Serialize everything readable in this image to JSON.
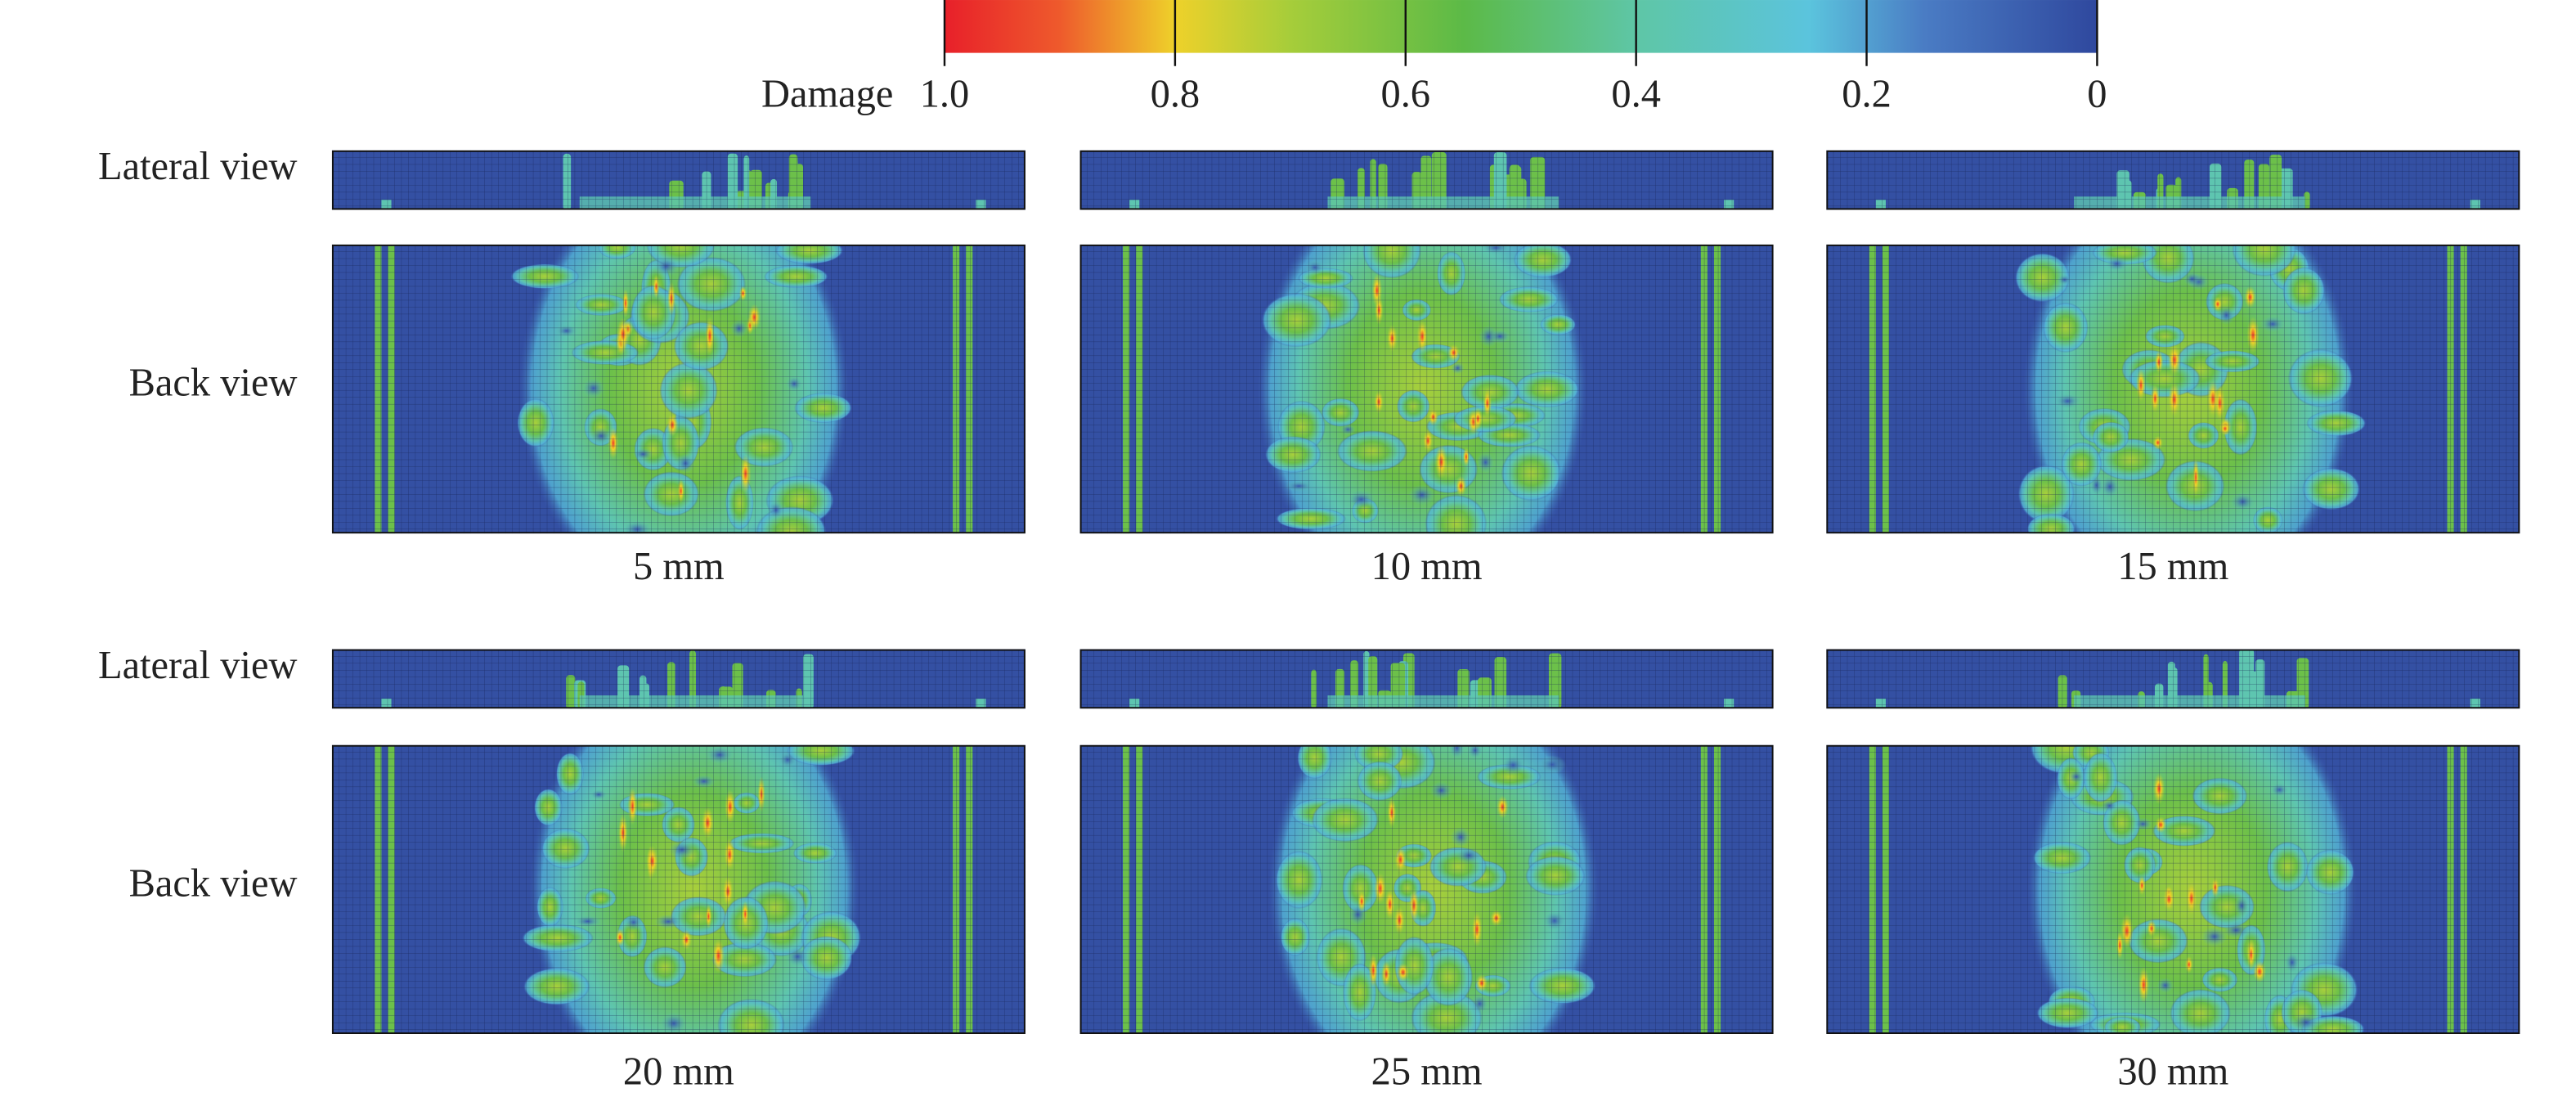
{
  "colorbar": {
    "label": "Damage",
    "ticks": [
      "1.0",
      "0.8",
      "0.6",
      "0.4",
      "0.2",
      "0"
    ]
  },
  "rows": [
    {
      "labels": [
        "Lateral view",
        "Back view"
      ],
      "captions": [
        "5 mm",
        "10 mm",
        "15 mm"
      ]
    },
    {
      "labels": [
        "Lateral view",
        "Back view"
      ],
      "captions": [
        "20 mm",
        "25 mm",
        "30 mm"
      ]
    }
  ]
}
